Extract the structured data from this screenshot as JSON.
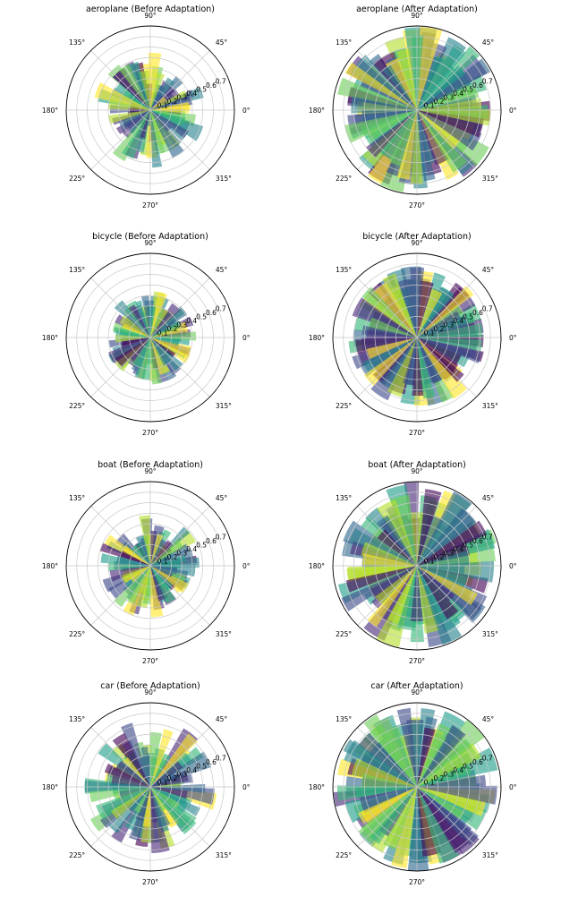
{
  "colors": {
    "viridis": [
      "#440154",
      "#482878",
      "#3e4989",
      "#31688e",
      "#26828e",
      "#1f9e89",
      "#35b779",
      "#6ece58",
      "#b5de2b",
      "#fde725"
    ],
    "grid": "#c8c8c8",
    "frame": "#000000"
  },
  "chart_data": [
    {
      "type": "polar-bar",
      "title": "aeroplane (Before Adaptation)",
      "theta_ticks": [
        "0°",
        "45°",
        "90°",
        "135°",
        "180°",
        "225°",
        "270°",
        "315°"
      ],
      "r_ticks": [
        "0.1",
        "0.2",
        "0.3",
        "0.4",
        "0.5",
        "0.6",
        "0.7"
      ],
      "rlim": [
        0,
        0.8
      ],
      "layers": 3,
      "bars_per_layer": 30,
      "r_range": [
        0.15,
        0.55
      ],
      "seed": 11
    },
    {
      "type": "polar-bar",
      "title": "aeroplane (After Adaptation)",
      "theta_ticks": [
        "0°",
        "45°",
        "90°",
        "135°",
        "180°",
        "225°",
        "270°",
        "315°"
      ],
      "r_ticks": [
        "0.1",
        "0.2",
        "0.3",
        "0.4",
        "0.5",
        "0.6",
        "0.7"
      ],
      "rlim": [
        0,
        0.8
      ],
      "layers": 3,
      "bars_per_layer": 30,
      "r_range": [
        0.5,
        0.8
      ],
      "seed": 12
    },
    {
      "type": "polar-bar",
      "title": "bicycle (Before Adaptation)",
      "theta_ticks": [
        "0°",
        "45°",
        "90°",
        "135°",
        "180°",
        "225°",
        "270°",
        "315°"
      ],
      "r_ticks": [
        "0.1",
        "0.2",
        "0.3",
        "0.4",
        "0.5",
        "0.6",
        "0.7"
      ],
      "rlim": [
        0,
        0.8
      ],
      "layers": 3,
      "bars_per_layer": 30,
      "r_range": [
        0.25,
        0.45
      ],
      "seed": 21
    },
    {
      "type": "polar-bar",
      "title": "bicycle (After Adaptation)",
      "theta_ticks": [
        "0°",
        "45°",
        "90°",
        "135°",
        "180°",
        "225°",
        "270°",
        "315°"
      ],
      "r_ticks": [
        "0.1",
        "0.2",
        "0.3",
        "0.4",
        "0.5",
        "0.6",
        "0.7"
      ],
      "rlim": [
        0,
        0.8
      ],
      "layers": 3,
      "bars_per_layer": 30,
      "r_range": [
        0.45,
        0.68
      ],
      "seed": 22
    },
    {
      "type": "polar-bar",
      "title": "boat (Before Adaptation)",
      "theta_ticks": [
        "0°",
        "45°",
        "90°",
        "135°",
        "180°",
        "225°",
        "270°",
        "315°"
      ],
      "r_ticks": [
        "0.1",
        "0.2",
        "0.3",
        "0.4",
        "0.5",
        "0.6",
        "0.7"
      ],
      "rlim": [
        0,
        0.8
      ],
      "layers": 3,
      "bars_per_layer": 30,
      "r_range": [
        0.2,
        0.5
      ],
      "seed": 31
    },
    {
      "type": "polar-bar",
      "title": "boat (After Adaptation)",
      "theta_ticks": [
        "0°",
        "45°",
        "90°",
        "135°",
        "180°",
        "225°",
        "270°",
        "315°"
      ],
      "r_ticks": [
        "0.1",
        "0.2",
        "0.3",
        "0.4",
        "0.5",
        "0.6",
        "0.7"
      ],
      "rlim": [
        0,
        0.8
      ],
      "layers": 3,
      "bars_per_layer": 30,
      "r_range": [
        0.45,
        0.8
      ],
      "seed": 32
    },
    {
      "type": "polar-bar",
      "title": "car (Before Adaptation)",
      "theta_ticks": [
        "0°",
        "45°",
        "90°",
        "135°",
        "180°",
        "225°",
        "270°",
        "315°"
      ],
      "r_ticks": [
        "0.1",
        "0.2",
        "0.3",
        "0.4",
        "0.5",
        "0.6",
        "0.7"
      ],
      "rlim": [
        0,
        0.8
      ],
      "layers": 3,
      "bars_per_layer": 30,
      "r_range": [
        0.25,
        0.65
      ],
      "seed": 41
    },
    {
      "type": "polar-bar",
      "title": "car (After Adaptation)",
      "theta_ticks": [
        "0°",
        "45°",
        "90°",
        "135°",
        "180°",
        "225°",
        "270°",
        "315°"
      ],
      "r_ticks": [
        "0.1",
        "0.2",
        "0.3",
        "0.4",
        "0.5",
        "0.6",
        "0.7"
      ],
      "rlim": [
        0,
        0.8
      ],
      "layers": 3,
      "bars_per_layer": 30,
      "r_range": [
        0.5,
        0.8
      ],
      "seed": 42
    }
  ]
}
